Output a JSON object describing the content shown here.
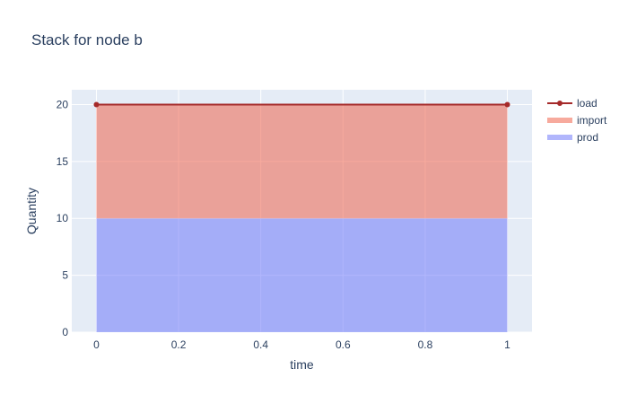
{
  "chart_data": {
    "type": "area",
    "title": "Stack for node b",
    "xlabel": "time",
    "ylabel": "Quantity",
    "x": [
      0,
      1
    ],
    "xlim": [
      -0.06,
      1.06
    ],
    "ylim": [
      0,
      21.3
    ],
    "xticks": [
      0,
      0.2,
      0.4,
      0.6,
      0.8,
      1
    ],
    "xtick_labels": [
      "0",
      "0.2",
      "0.4",
      "0.6",
      "0.8",
      "1"
    ],
    "yticks": [
      0,
      5,
      10,
      15,
      20
    ],
    "ytick_labels": [
      "0",
      "5",
      "10",
      "15",
      "20"
    ],
    "grid": true,
    "legend_position": "top-right",
    "series": [
      {
        "name": "prod",
        "kind": "stacked-area",
        "values": [
          10,
          10
        ],
        "color": "#636efa"
      },
      {
        "name": "import",
        "kind": "stacked-area",
        "values": [
          10,
          10
        ],
        "color": "#ef553b"
      },
      {
        "name": "load",
        "kind": "line+markers",
        "values": [
          20,
          20
        ],
        "color": "#a52a2a"
      }
    ],
    "legend": [
      "load",
      "import",
      "prod"
    ],
    "plot_background": "#e5ecf6"
  }
}
